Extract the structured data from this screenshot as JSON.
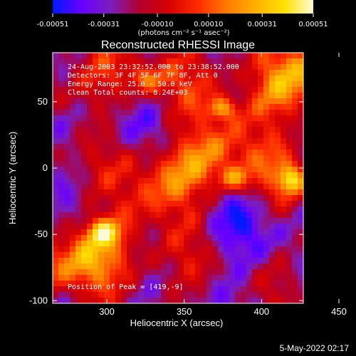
{
  "chart_data": {
    "type": "heatmap",
    "title": "Reconstructed RHESSI Image",
    "xlabel": "Heliocentric X (arcsec)",
    "ylabel": "Heliocentric Y (arcsec)",
    "x_range": [
      265,
      427
    ],
    "y_range": [
      -102,
      87
    ],
    "x_ticks": [
      {
        "value": 300,
        "label": "300"
      },
      {
        "value": 350,
        "label": "350"
      },
      {
        "value": 400,
        "label": "400"
      },
      {
        "value": 450,
        "label": "450"
      }
    ],
    "y_ticks": [
      {
        "value": 50,
        "label": "50"
      },
      {
        "value": 0,
        "label": "0"
      },
      {
        "value": -50,
        "label": "-50"
      },
      {
        "value": -100,
        "label": "-100"
      }
    ],
    "colorbar": {
      "range": [
        -0.00051,
        0.00051
      ],
      "ticks": [
        {
          "value": -0.00051,
          "label": "-0.00051"
        },
        {
          "value": -0.00031,
          "label": "-0.00031"
        },
        {
          "value": -0.0001,
          "label": "-0.00010"
        },
        {
          "value": 0.0001,
          "label": "0.00010"
        },
        {
          "value": 0.00031,
          "label": "0.00031"
        },
        {
          "value": 0.00051,
          "label": "0.00051"
        }
      ],
      "unit_label": "(photons cm⁻² s⁻¹ asec⁻²)",
      "colors": [
        "#0018ff",
        "#6a00ff",
        "#7b1ebe",
        "#b2002d",
        "#d60000",
        "#ff2a00",
        "#ff7a00",
        "#ffb000",
        "#ffe000",
        "#fffbd8"
      ]
    },
    "annotation_lines": [
      "24-Aug-2003 23:32:52.000 to 23:38:52.000",
      "Detectors: 3F 4F 5F 6F 7F 8F, Att 0",
      "Energy Range: 25.0 - 50.0 keV",
      "Clean    Total counts: 8.24E+03"
    ],
    "peak_text": "Position of Peak = [419,-9]",
    "peak_position": [
      419,
      -9
    ],
    "notable_sources": [
      {
        "x": 419,
        "y": -9,
        "value": 0.00051
      },
      {
        "x": 375,
        "y": 45,
        "value": 0.00045
      },
      {
        "x": 298,
        "y": -48,
        "value": 0.00046
      },
      {
        "x": 382,
        "y": -8,
        "value": 0.00039
      },
      {
        "x": 326,
        "y": 67,
        "value": 0.00028
      }
    ]
  },
  "footer": {
    "timestamp": "5-May-2022 02:17"
  }
}
